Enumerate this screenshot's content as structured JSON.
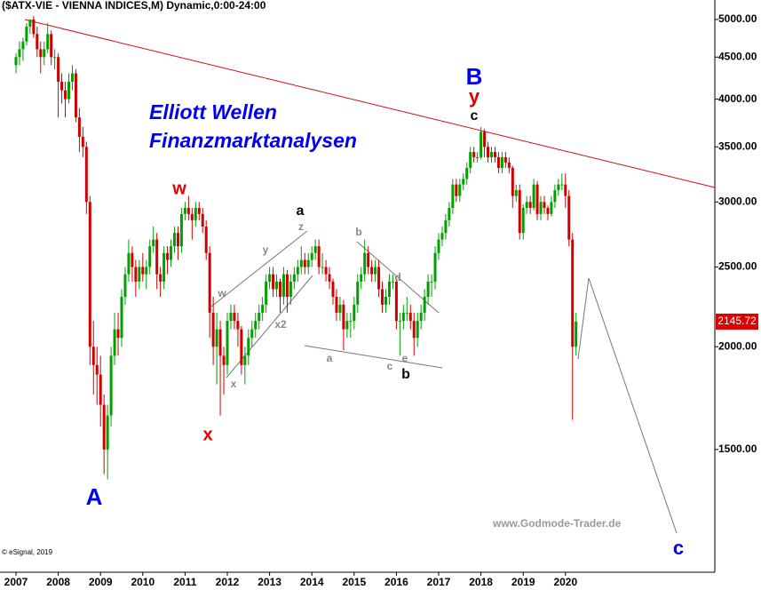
{
  "chart_data": {
    "type": "candlestick",
    "title": "($ATX-VIE - VIENNA INDICES,M) Dynamic,0:00-24:00",
    "subtitle": "Elliott Wellen",
    "subtitle2": "Finanzmarktanalysen",
    "source": "www.Godmode-Trader.de",
    "copyright": "© eSignal, 2019",
    "log_scale": true,
    "up_color": "#00a000",
    "down_color": "#d00000",
    "ylim": [
      1035,
      5280
    ],
    "yticks": [
      {
        "value": 1500,
        "label": "1500.00"
      },
      {
        "value": 2000,
        "label": "2000.00"
      },
      {
        "value": 2500,
        "label": "2500.00"
      },
      {
        "value": 3000,
        "label": "3000.00"
      },
      {
        "value": 3500,
        "label": "3500.00"
      },
      {
        "value": 4000,
        "label": "4000.00"
      },
      {
        "value": 4500,
        "label": "4500.00"
      },
      {
        "value": 5000,
        "label": "5000.00"
      }
    ],
    "categories": [
      "2007",
      null,
      null,
      null,
      null,
      null,
      null,
      null,
      null,
      null,
      null,
      null,
      "2008",
      null,
      null,
      null,
      null,
      null,
      null,
      null,
      null,
      null,
      null,
      null,
      "2009",
      null,
      null,
      null,
      null,
      null,
      null,
      null,
      null,
      null,
      null,
      null,
      "2010",
      null,
      null,
      null,
      null,
      null,
      null,
      null,
      null,
      null,
      null,
      null,
      "2011",
      null,
      null,
      null,
      null,
      null,
      null,
      null,
      null,
      null,
      null,
      null,
      "2012",
      null,
      null,
      null,
      null,
      null,
      null,
      null,
      null,
      null,
      null,
      null,
      "2013",
      null,
      null,
      null,
      null,
      null,
      null,
      null,
      null,
      null,
      null,
      null,
      "2014",
      null,
      null,
      null,
      null,
      null,
      null,
      null,
      null,
      null,
      null,
      null,
      "2015",
      null,
      null,
      null,
      null,
      null,
      null,
      null,
      null,
      null,
      null,
      null,
      "2016",
      null,
      null,
      null,
      null,
      null,
      null,
      null,
      null,
      null,
      null,
      null,
      "2017",
      null,
      null,
      null,
      null,
      null,
      null,
      null,
      null,
      null,
      null,
      null,
      "2018",
      null,
      null,
      null,
      null,
      null,
      null,
      null,
      null,
      null,
      null,
      null,
      "2019",
      null,
      null,
      null,
      null,
      null,
      null,
      null,
      null,
      null,
      null,
      null,
      "2020",
      null,
      null,
      null
    ],
    "values": [
      [
        4400,
        4550,
        4300,
        4500
      ],
      [
        4500,
        4700,
        4400,
        4600
      ],
      [
        4600,
        4750,
        4450,
        4700
      ],
      [
        4700,
        4950,
        4650,
        4900
      ],
      [
        4900,
        5000,
        4800,
        5000
      ],
      [
        5000,
        5050,
        4750,
        4800
      ],
      [
        4800,
        4900,
        4500,
        4600
      ],
      [
        4600,
        4700,
        4300,
        4500
      ],
      [
        4500,
        4700,
        4400,
        4600
      ],
      [
        4600,
        4950,
        4550,
        4800
      ],
      [
        4800,
        4850,
        4400,
        4500
      ],
      [
        4500,
        4600,
        4350,
        4500
      ],
      [
        4500,
        4550,
        3800,
        4200
      ],
      [
        4200,
        4300,
        3950,
        4100
      ],
      [
        4100,
        4200,
        3800,
        4000
      ],
      [
        4000,
        4300,
        3950,
        4200
      ],
      [
        4200,
        4400,
        4100,
        4300
      ],
      [
        4300,
        4350,
        3750,
        3800
      ],
      [
        3800,
        3900,
        3450,
        3600
      ],
      [
        3600,
        3700,
        3400,
        3500
      ],
      [
        3500,
        3550,
        2900,
        3000
      ],
      [
        3000,
        3050,
        1900,
        2000
      ],
      [
        2000,
        2150,
        1750,
        1900
      ],
      [
        1900,
        2000,
        1700,
        1850
      ],
      [
        1850,
        1950,
        1600,
        1700
      ],
      [
        1700,
        1750,
        1400,
        1500
      ],
      [
        1500,
        1700,
        1380,
        1650
      ],
      [
        1650,
        2000,
        1600,
        1950
      ],
      [
        1950,
        2200,
        1900,
        2100
      ],
      [
        2100,
        2200,
        1950,
        2050
      ],
      [
        2050,
        2350,
        2000,
        2300
      ],
      [
        2300,
        2500,
        2250,
        2450
      ],
      [
        2450,
        2700,
        2400,
        2600
      ],
      [
        2600,
        2650,
        2400,
        2500
      ],
      [
        2500,
        2550,
        2300,
        2400
      ],
      [
        2400,
        2550,
        2350,
        2500
      ],
      [
        2500,
        2600,
        2400,
        2450
      ],
      [
        2450,
        2550,
        2350,
        2500
      ],
      [
        2500,
        2700,
        2450,
        2650
      ],
      [
        2650,
        2800,
        2600,
        2700
      ],
      [
        2700,
        2750,
        2350,
        2450
      ],
      [
        2450,
        2500,
        2300,
        2400
      ],
      [
        2400,
        2650,
        2350,
        2600
      ],
      [
        2600,
        2650,
        2450,
        2550
      ],
      [
        2550,
        2700,
        2500,
        2650
      ],
      [
        2650,
        2800,
        2600,
        2750
      ],
      [
        2750,
        2800,
        2550,
        2650
      ],
      [
        2650,
        2950,
        2600,
        2900
      ],
      [
        2900,
        3000,
        2850,
        2950
      ],
      [
        2950,
        3050,
        2850,
        2900
      ],
      [
        2900,
        2950,
        2700,
        2850
      ],
      [
        2850,
        3000,
        2800,
        2950
      ],
      [
        2950,
        3000,
        2850,
        2900
      ],
      [
        2900,
        2950,
        2750,
        2800
      ],
      [
        2800,
        2850,
        2550,
        2600
      ],
      [
        2600,
        2650,
        2050,
        2200
      ],
      [
        2200,
        2300,
        1900,
        2000
      ],
      [
        2000,
        2200,
        1800,
        2100
      ],
      [
        2100,
        2150,
        1650,
        1950
      ],
      [
        1950,
        2000,
        1750,
        1900
      ],
      [
        1900,
        2200,
        1850,
        2150
      ],
      [
        2150,
        2250,
        2100,
        2200
      ],
      [
        2200,
        2250,
        2100,
        2150
      ],
      [
        2150,
        2200,
        2000,
        2100
      ],
      [
        2100,
        2120,
        1850,
        1900
      ],
      [
        1900,
        2000,
        1800,
        1950
      ],
      [
        1950,
        2100,
        1900,
        2050
      ],
      [
        2050,
        2150,
        2000,
        2100
      ],
      [
        2100,
        2200,
        2050,
        2150
      ],
      [
        2150,
        2250,
        2100,
        2200
      ],
      [
        2200,
        2300,
        2150,
        2250
      ],
      [
        2250,
        2450,
        2200,
        2400
      ],
      [
        2400,
        2500,
        2350,
        2450
      ],
      [
        2450,
        2500,
        2300,
        2350
      ],
      [
        2350,
        2450,
        2300,
        2400
      ],
      [
        2400,
        2420,
        2200,
        2300
      ],
      [
        2300,
        2500,
        2250,
        2450
      ],
      [
        2450,
        2480,
        2200,
        2300
      ],
      [
        2300,
        2450,
        2250,
        2400
      ],
      [
        2400,
        2500,
        2350,
        2450
      ],
      [
        2450,
        2550,
        2400,
        2500
      ],
      [
        2500,
        2650,
        2450,
        2550
      ],
      [
        2550,
        2600,
        2450,
        2500
      ],
      [
        2500,
        2600,
        2450,
        2550
      ],
      [
        2550,
        2650,
        2500,
        2600
      ],
      [
        2600,
        2700,
        2550,
        2650
      ],
      [
        2650,
        2700,
        2450,
        2500
      ],
      [
        2500,
        2600,
        2450,
        2500
      ],
      [
        2500,
        2550,
        2400,
        2450
      ],
      [
        2450,
        2500,
        2350,
        2400
      ],
      [
        2400,
        2420,
        2250,
        2300
      ],
      [
        2300,
        2350,
        2150,
        2200
      ],
      [
        2200,
        2300,
        2150,
        2250
      ],
      [
        2250,
        2280,
        1980,
        2100
      ],
      [
        2100,
        2200,
        2050,
        2150
      ],
      [
        2150,
        2200,
        2050,
        2150
      ],
      [
        2150,
        2300,
        2100,
        2250
      ],
      [
        2250,
        2450,
        2200,
        2400
      ],
      [
        2400,
        2500,
        2350,
        2450
      ],
      [
        2450,
        2700,
        2400,
        2600
      ],
      [
        2600,
        2650,
        2450,
        2500
      ],
      [
        2500,
        2550,
        2400,
        2450
      ],
      [
        2450,
        2550,
        2400,
        2500
      ],
      [
        2500,
        2550,
        2300,
        2350
      ],
      [
        2350,
        2400,
        2200,
        2250
      ],
      [
        2250,
        2350,
        2200,
        2300
      ],
      [
        2300,
        2450,
        2250,
        2400
      ],
      [
        2400,
        2450,
        2350,
        2400
      ],
      [
        2400,
        2420,
        2100,
        2150
      ],
      [
        2150,
        2200,
        1950,
        2150
      ],
      [
        2150,
        2250,
        2100,
        2200
      ],
      [
        2200,
        2300,
        2150,
        2200
      ],
      [
        2200,
        2250,
        2100,
        2150
      ],
      [
        2150,
        2200,
        1950,
        2050
      ],
      [
        2050,
        2200,
        2000,
        2150
      ],
      [
        2150,
        2250,
        2100,
        2200
      ],
      [
        2200,
        2350,
        2150,
        2300
      ],
      [
        2300,
        2450,
        2250,
        2400
      ],
      [
        2400,
        2450,
        2300,
        2400
      ],
      [
        2400,
        2650,
        2350,
        2600
      ],
      [
        2600,
        2750,
        2550,
        2700
      ],
      [
        2700,
        2800,
        2650,
        2750
      ],
      [
        2750,
        2900,
        2700,
        2850
      ],
      [
        2850,
        3000,
        2800,
        2950
      ],
      [
        2950,
        3200,
        2900,
        3150
      ],
      [
        3150,
        3200,
        3000,
        3050
      ],
      [
        3050,
        3200,
        3000,
        3150
      ],
      [
        3150,
        3250,
        3100,
        3200
      ],
      [
        3200,
        3350,
        3150,
        3300
      ],
      [
        3300,
        3500,
        3250,
        3450
      ],
      [
        3450,
        3500,
        3350,
        3400
      ],
      [
        3400,
        3450,
        3350,
        3400
      ],
      [
        3400,
        3700,
        3380,
        3650
      ],
      [
        3650,
        3680,
        3400,
        3500
      ],
      [
        3500,
        3550,
        3350,
        3400
      ],
      [
        3400,
        3500,
        3350,
        3450
      ],
      [
        3450,
        3500,
        3350,
        3400
      ],
      [
        3400,
        3450,
        3250,
        3300
      ],
      [
        3300,
        3450,
        3250,
        3400
      ],
      [
        3400,
        3450,
        3300,
        3350
      ],
      [
        3350,
        3400,
        3250,
        3300
      ],
      [
        3300,
        3320,
        2950,
        3050
      ],
      [
        3050,
        3150,
        3000,
        3100
      ],
      [
        3100,
        3150,
        2700,
        2750
      ],
      [
        2750,
        2980,
        2700,
        2950
      ],
      [
        2950,
        3050,
        2900,
        3000
      ],
      [
        3000,
        3050,
        2900,
        2950
      ],
      [
        2950,
        3200,
        2930,
        3150
      ],
      [
        3150,
        3180,
        2850,
        2900
      ],
      [
        2900,
        3050,
        2850,
        3000
      ],
      [
        3000,
        3050,
        2900,
        2950
      ],
      [
        2950,
        2970,
        2850,
        2900
      ],
      [
        2900,
        3050,
        2880,
        3000
      ],
      [
        3000,
        3150,
        2950,
        3100
      ],
      [
        3100,
        3200,
        3050,
        3150
      ],
      [
        3150,
        3250,
        3100,
        3150
      ],
      [
        3150,
        3250,
        2950,
        3050
      ],
      [
        3050,
        3100,
        2650,
        2700
      ],
      [
        2700,
        2750,
        1630,
        2000
      ],
      [
        2000,
        2200,
        1950,
        2145.72
      ]
    ],
    "annotations": [
      {
        "text": "A",
        "color": "#0000ee"
      },
      {
        "text": "w",
        "color": "#e00000"
      },
      {
        "text": "x",
        "color": "#e00000"
      },
      {
        "text": "a",
        "color": "#000000"
      },
      {
        "text": "b",
        "color": "#000000"
      },
      {
        "text": "B",
        "color": "#0000ee"
      },
      {
        "text": "y",
        "color": "#e00000"
      },
      {
        "text": "c",
        "color": "#000000"
      },
      {
        "text": "c",
        "color": "#0000ee"
      },
      {
        "text": "w",
        "color": "#888888"
      },
      {
        "text": "x",
        "color": "#888888"
      },
      {
        "text": "y",
        "color": "#888888"
      },
      {
        "text": "z",
        "color": "#888888"
      },
      {
        "text": "x2",
        "color": "#888888"
      },
      {
        "text": "a",
        "color": "#888888"
      },
      {
        "text": "b",
        "color": "#888888"
      },
      {
        "text": "c",
        "color": "#888888"
      },
      {
        "text": "d",
        "color": "#888888"
      },
      {
        "text": "e",
        "color": "#888888"
      }
    ]
  }
}
